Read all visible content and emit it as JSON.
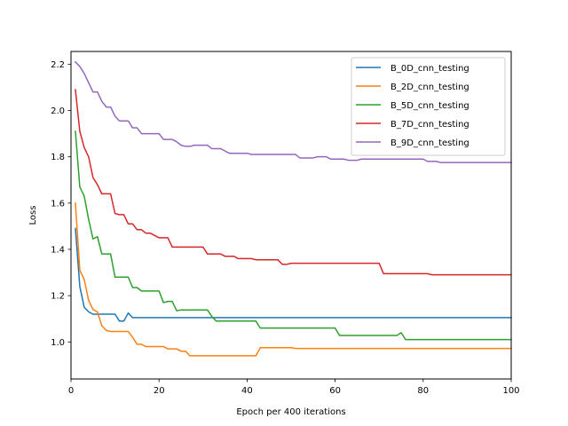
{
  "chart_data": {
    "type": "line",
    "xlabel": "Epoch per 400 iterations",
    "ylabel": "Loss",
    "xlim": [
      0,
      100
    ],
    "ylim": [
      0.84,
      2.255
    ],
    "x_ticks": [
      0,
      20,
      40,
      60,
      80,
      100
    ],
    "y_ticks": [
      1.0,
      1.2,
      1.4,
      1.6,
      1.8,
      2.0,
      2.2
    ],
    "x_tick_labels": [
      "0",
      "20",
      "40",
      "60",
      "80",
      "100"
    ],
    "y_tick_labels": [
      "1.0",
      "1.2",
      "1.4",
      "1.6",
      "1.8",
      "2.0",
      "2.2"
    ],
    "grid": false,
    "legend_position": "top-right",
    "series": [
      {
        "name": "B_0D_cnn_testing",
        "color": "#1f77b4",
        "points": [
          [
            1,
            1.49
          ],
          [
            2,
            1.24
          ],
          [
            3,
            1.15
          ],
          [
            4,
            1.13
          ],
          [
            5,
            1.12
          ],
          [
            6,
            1.12
          ],
          [
            7,
            1.12
          ],
          [
            8,
            1.12
          ],
          [
            9,
            1.12
          ],
          [
            10,
            1.12
          ],
          [
            11,
            1.09
          ],
          [
            12,
            1.09
          ],
          [
            13,
            1.125
          ],
          [
            14,
            1.105
          ],
          [
            15,
            1.105
          ],
          [
            20,
            1.105
          ],
          [
            30,
            1.105
          ],
          [
            40,
            1.105
          ],
          [
            50,
            1.105
          ],
          [
            60,
            1.105
          ],
          [
            70,
            1.105
          ],
          [
            80,
            1.105
          ],
          [
            90,
            1.105
          ],
          [
            100,
            1.105
          ]
        ]
      },
      {
        "name": "B_2D_cnn_testing",
        "color": "#ff7f0e",
        "points": [
          [
            1,
            1.6
          ],
          [
            2,
            1.31
          ],
          [
            3,
            1.27
          ],
          [
            4,
            1.18
          ],
          [
            5,
            1.14
          ],
          [
            6,
            1.13
          ],
          [
            7,
            1.07
          ],
          [
            8,
            1.05
          ],
          [
            9,
            1.045
          ],
          [
            10,
            1.045
          ],
          [
            11,
            1.045
          ],
          [
            12,
            1.045
          ],
          [
            13,
            1.045
          ],
          [
            14,
            1.02
          ],
          [
            15,
            0.99
          ],
          [
            16,
            0.99
          ],
          [
            17,
            0.98
          ],
          [
            18,
            0.98
          ],
          [
            19,
            0.98
          ],
          [
            20,
            0.98
          ],
          [
            21,
            0.98
          ],
          [
            22,
            0.97
          ],
          [
            23,
            0.97
          ],
          [
            24,
            0.97
          ],
          [
            25,
            0.96
          ],
          [
            26,
            0.96
          ],
          [
            27,
            0.94
          ],
          [
            28,
            0.94
          ],
          [
            30,
            0.94
          ],
          [
            35,
            0.94
          ],
          [
            40,
            0.94
          ],
          [
            42,
            0.94
          ],
          [
            43,
            0.975
          ],
          [
            44,
            0.975
          ],
          [
            50,
            0.975
          ],
          [
            51,
            0.972
          ],
          [
            52,
            0.972
          ],
          [
            60,
            0.972
          ],
          [
            70,
            0.972
          ],
          [
            80,
            0.972
          ],
          [
            90,
            0.972
          ],
          [
            100,
            0.972
          ]
        ]
      },
      {
        "name": "B_5D_cnn_testing",
        "color": "#2ca02c",
        "points": [
          [
            1,
            1.91
          ],
          [
            2,
            1.67
          ],
          [
            3,
            1.63
          ],
          [
            4,
            1.53
          ],
          [
            5,
            1.445
          ],
          [
            6,
            1.455
          ],
          [
            7,
            1.38
          ],
          [
            8,
            1.38
          ],
          [
            9,
            1.38
          ],
          [
            10,
            1.28
          ],
          [
            11,
            1.28
          ],
          [
            12,
            1.28
          ],
          [
            13,
            1.28
          ],
          [
            14,
            1.235
          ],
          [
            15,
            1.235
          ],
          [
            16,
            1.22
          ],
          [
            17,
            1.22
          ],
          [
            18,
            1.22
          ],
          [
            19,
            1.22
          ],
          [
            20,
            1.22
          ],
          [
            21,
            1.17
          ],
          [
            22,
            1.175
          ],
          [
            23,
            1.175
          ],
          [
            24,
            1.135
          ],
          [
            25,
            1.138
          ],
          [
            26,
            1.138
          ],
          [
            27,
            1.138
          ],
          [
            28,
            1.138
          ],
          [
            29,
            1.138
          ],
          [
            30,
            1.138
          ],
          [
            31,
            1.138
          ],
          [
            32,
            1.11
          ],
          [
            33,
            1.09
          ],
          [
            34,
            1.09
          ],
          [
            36,
            1.09
          ],
          [
            38,
            1.09
          ],
          [
            40,
            1.09
          ],
          [
            42,
            1.09
          ],
          [
            43,
            1.06
          ],
          [
            45,
            1.06
          ],
          [
            50,
            1.06
          ],
          [
            55,
            1.06
          ],
          [
            60,
            1.06
          ],
          [
            61,
            1.028
          ],
          [
            62,
            1.028
          ],
          [
            65,
            1.028
          ],
          [
            70,
            1.028
          ],
          [
            74,
            1.028
          ],
          [
            75,
            1.04
          ],
          [
            76,
            1.01
          ],
          [
            77,
            1.01
          ],
          [
            80,
            1.01
          ],
          [
            90,
            1.01
          ],
          [
            100,
            1.01
          ]
        ]
      },
      {
        "name": "B_7D_cnn_testing",
        "color": "#d62728",
        "points": [
          [
            1,
            2.09
          ],
          [
            2,
            1.91
          ],
          [
            3,
            1.84
          ],
          [
            4,
            1.8
          ],
          [
            5,
            1.71
          ],
          [
            6,
            1.68
          ],
          [
            7,
            1.64
          ],
          [
            8,
            1.64
          ],
          [
            9,
            1.64
          ],
          [
            10,
            1.555
          ],
          [
            11,
            1.55
          ],
          [
            12,
            1.55
          ],
          [
            13,
            1.51
          ],
          [
            14,
            1.51
          ],
          [
            15,
            1.485
          ],
          [
            16,
            1.485
          ],
          [
            17,
            1.47
          ],
          [
            18,
            1.47
          ],
          [
            19,
            1.46
          ],
          [
            20,
            1.45
          ],
          [
            21,
            1.45
          ],
          [
            22,
            1.45
          ],
          [
            23,
            1.41
          ],
          [
            24,
            1.41
          ],
          [
            25,
            1.41
          ],
          [
            26,
            1.41
          ],
          [
            28,
            1.41
          ],
          [
            30,
            1.41
          ],
          [
            31,
            1.38
          ],
          [
            32,
            1.38
          ],
          [
            33,
            1.38
          ],
          [
            34,
            1.38
          ],
          [
            35,
            1.37
          ],
          [
            36,
            1.37
          ],
          [
            37,
            1.37
          ],
          [
            38,
            1.36
          ],
          [
            39,
            1.36
          ],
          [
            40,
            1.36
          ],
          [
            41,
            1.36
          ],
          [
            42,
            1.355
          ],
          [
            43,
            1.355
          ],
          [
            45,
            1.355
          ],
          [
            47,
            1.355
          ],
          [
            48,
            1.335
          ],
          [
            49,
            1.335
          ],
          [
            50,
            1.34
          ],
          [
            55,
            1.34
          ],
          [
            60,
            1.34
          ],
          [
            65,
            1.34
          ],
          [
            70,
            1.34
          ],
          [
            71,
            1.295
          ],
          [
            72,
            1.295
          ],
          [
            75,
            1.295
          ],
          [
            80,
            1.295
          ],
          [
            81,
            1.295
          ],
          [
            82,
            1.29
          ],
          [
            85,
            1.29
          ],
          [
            90,
            1.29
          ],
          [
            95,
            1.29
          ],
          [
            100,
            1.29
          ]
        ]
      },
      {
        "name": "B_9D_cnn_testing",
        "color": "#9467bd",
        "points": [
          [
            1,
            2.21
          ],
          [
            2,
            2.19
          ],
          [
            3,
            2.16
          ],
          [
            4,
            2.12
          ],
          [
            5,
            2.08
          ],
          [
            6,
            2.08
          ],
          [
            7,
            2.04
          ],
          [
            8,
            2.015
          ],
          [
            9,
            2.015
          ],
          [
            10,
            1.975
          ],
          [
            11,
            1.955
          ],
          [
            12,
            1.955
          ],
          [
            13,
            1.955
          ],
          [
            14,
            1.925
          ],
          [
            15,
            1.925
          ],
          [
            16,
            1.9
          ],
          [
            17,
            1.9
          ],
          [
            18,
            1.9
          ],
          [
            19,
            1.9
          ],
          [
            20,
            1.9
          ],
          [
            21,
            1.875
          ],
          [
            22,
            1.875
          ],
          [
            23,
            1.875
          ],
          [
            24,
            1.865
          ],
          [
            25,
            1.85
          ],
          [
            26,
            1.845
          ],
          [
            27,
            1.845
          ],
          [
            28,
            1.85
          ],
          [
            29,
            1.85
          ],
          [
            30,
            1.85
          ],
          [
            31,
            1.85
          ],
          [
            32,
            1.835
          ],
          [
            33,
            1.835
          ],
          [
            34,
            1.835
          ],
          [
            35,
            1.825
          ],
          [
            36,
            1.815
          ],
          [
            37,
            1.815
          ],
          [
            38,
            1.815
          ],
          [
            39,
            1.815
          ],
          [
            40,
            1.815
          ],
          [
            41,
            1.81
          ],
          [
            42,
            1.81
          ],
          [
            45,
            1.81
          ],
          [
            50,
            1.81
          ],
          [
            51,
            1.81
          ],
          [
            52,
            1.795
          ],
          [
            53,
            1.795
          ],
          [
            55,
            1.795
          ],
          [
            56,
            1.8
          ],
          [
            57,
            1.8
          ],
          [
            58,
            1.8
          ],
          [
            59,
            1.79
          ],
          [
            60,
            1.79
          ],
          [
            62,
            1.79
          ],
          [
            63,
            1.785
          ],
          [
            64,
            1.785
          ],
          [
            65,
            1.785
          ],
          [
            66,
            1.79
          ],
          [
            67,
            1.79
          ],
          [
            70,
            1.79
          ],
          [
            75,
            1.79
          ],
          [
            80,
            1.79
          ],
          [
            81,
            1.78
          ],
          [
            82,
            1.78
          ],
          [
            83,
            1.78
          ],
          [
            84,
            1.775
          ],
          [
            85,
            1.775
          ],
          [
            90,
            1.775
          ],
          [
            95,
            1.775
          ],
          [
            100,
            1.775
          ]
        ]
      }
    ]
  }
}
